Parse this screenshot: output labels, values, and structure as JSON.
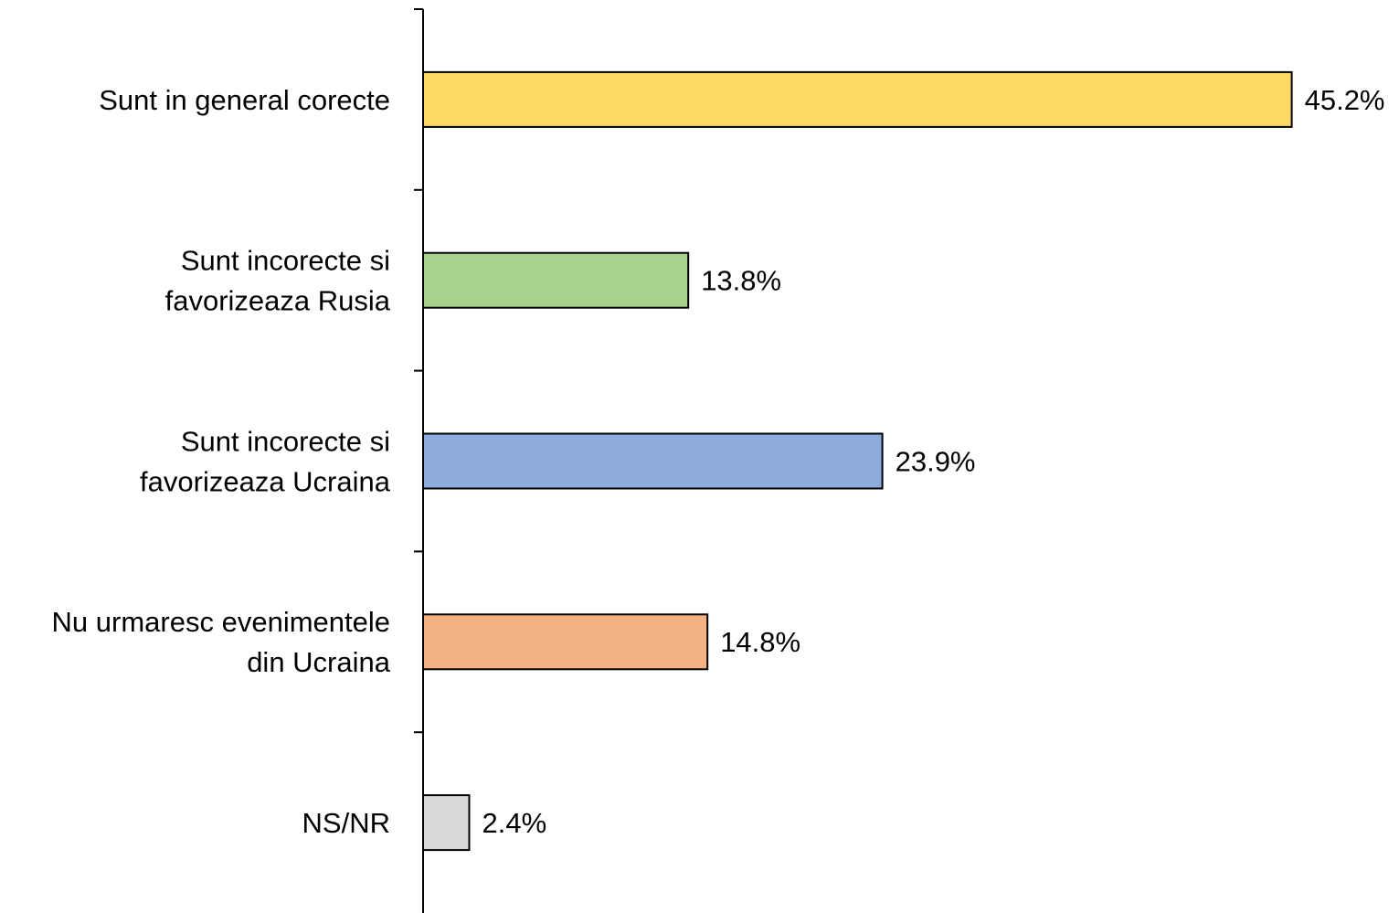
{
  "chart_data": {
    "type": "bar",
    "orientation": "horizontal",
    "categories": [
      [
        "Sunt in general corecte"
      ],
      [
        "Sunt incorecte si",
        "favorizeaza Rusia"
      ],
      [
        "Sunt incorecte si",
        "favorizeaza Ucraina"
      ],
      [
        "Nu urmaresc evenimentele",
        "din Ucraina"
      ],
      [
        "NS/NR"
      ]
    ],
    "values": [
      45.2,
      13.8,
      23.9,
      14.8,
      2.4
    ],
    "value_labels": [
      "45.2%",
      "13.8%",
      "23.9%",
      "14.8%",
      "2.4%"
    ],
    "colors": [
      "#FFD966",
      "#A9D18E",
      "#8FAADC",
      "#F4B183",
      "#D9D9D9"
    ],
    "title": "",
    "xlabel": "",
    "ylabel": "",
    "xlim": [
      0,
      50
    ],
    "grid": false,
    "legend": "none"
  }
}
